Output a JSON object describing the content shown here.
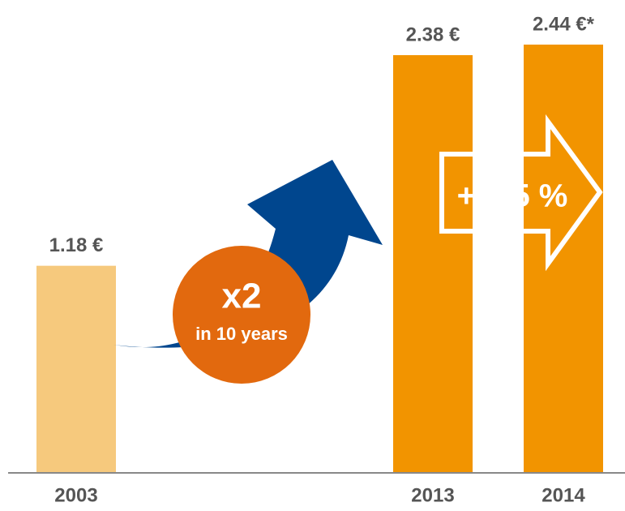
{
  "chart_data": {
    "type": "bar",
    "categories": [
      "2003",
      "2013",
      "2014"
    ],
    "values": [
      1.18,
      2.38,
      2.44
    ],
    "value_labels": [
      "1.18 €",
      "2.38 €",
      "2.44 €*"
    ],
    "colors": [
      "#f6c97d",
      "#f29400",
      "#f29400"
    ],
    "ylim": [
      0,
      2.5
    ],
    "annotations": [
      "x2",
      "in 10 years",
      "+ 2.5 %"
    ]
  }
}
